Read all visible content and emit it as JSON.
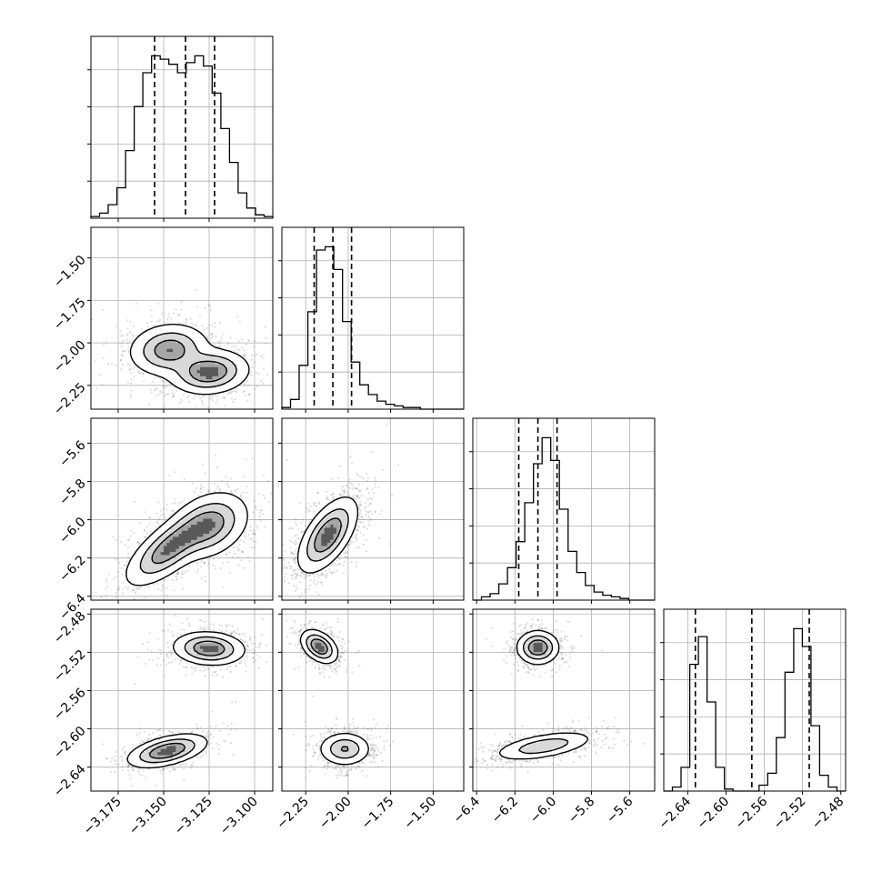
{
  "chart_data": {
    "type": "scatter",
    "title": "",
    "plot_kind": "corner",
    "grid": true,
    "quantiles": [
      0.16,
      0.5,
      0.84
    ],
    "params": [
      {
        "range": [
          -3.19,
          -3.09
        ],
        "ticks": [
          -3.175,
          -3.15,
          -3.125,
          -3.1
        ],
        "tick_labels": [
          "−3.175",
          "−3.150",
          "−3.125",
          "−3.100"
        ],
        "quantile_values": [
          -3.155,
          -3.138,
          -3.122
        ],
        "modes": [
          {
            "center": -3.147,
            "sigma": 0.009,
            "weight": 0.5
          },
          {
            "center": -3.125,
            "sigma": 0.009,
            "weight": 0.5
          }
        ]
      },
      {
        "range": [
          -2.39,
          -1.32
        ],
        "ticks": [
          -2.25,
          -2.0,
          -1.75,
          -1.5
        ],
        "tick_labels": [
          "−2.25",
          "−2.00",
          "−1.75",
          "−1.50"
        ],
        "quantile_values": [
          -2.2,
          -2.09,
          -1.98
        ],
        "modes": [
          {
            "center": -2.1,
            "sigma": 0.07,
            "weight": 1.0
          }
        ]
      },
      {
        "range": [
          -6.42,
          -5.47
        ],
        "ticks": [
          -6.4,
          -6.2,
          -6.0,
          -5.8,
          -5.6
        ],
        "tick_labels": [
          "−6.4",
          "−6.2",
          "−6.0",
          "−5.8",
          "−5.6"
        ],
        "quantile_values": [
          -6.18,
          -6.08,
          -5.98
        ],
        "modes": [
          {
            "center": -6.08,
            "sigma": 0.07,
            "weight": 1.0
          }
        ]
      },
      {
        "range": [
          -2.665,
          -2.475
        ],
        "ticks": [
          -2.64,
          -2.6,
          -2.56,
          -2.52,
          -2.48
        ],
        "tick_labels": [
          "−2.64",
          "−2.60",
          "−2.56",
          "−2.52",
          "−2.48"
        ],
        "quantile_values": [
          -2.632,
          -2.573,
          -2.513
        ],
        "modes": [
          {
            "center": -2.623,
            "sigma": 0.007,
            "weight": 0.5
          },
          {
            "center": -2.516,
            "sigma": 0.007,
            "weight": 0.5
          }
        ]
      }
    ],
    "histograms": [
      [
        0.01,
        0.03,
        0.08,
        0.18,
        0.4,
        0.66,
        0.86,
        0.96,
        0.94,
        0.91,
        0.86,
        0.92,
        0.96,
        0.9,
        0.74,
        0.53,
        0.33,
        0.15,
        0.06,
        0.02,
        0.01
      ],
      [
        0.01,
        0.06,
        0.27,
        0.6,
        0.98,
        1.0,
        0.86,
        0.54,
        0.29,
        0.15,
        0.09,
        0.05,
        0.03,
        0.02,
        0.01,
        0.01,
        0.0,
        0.0,
        0.0,
        0.0,
        0.0
      ],
      [
        0.0,
        0.02,
        0.04,
        0.1,
        0.2,
        0.36,
        0.6,
        0.84,
        1.0,
        0.86,
        0.56,
        0.3,
        0.17,
        0.09,
        0.05,
        0.03,
        0.02,
        0.01,
        0.0,
        0.0,
        0.0
      ],
      [
        0.0,
        0.02,
        0.12,
        0.64,
        0.78,
        0.45,
        0.12,
        0.01,
        0.0,
        0.0,
        0.0,
        0.03,
        0.09,
        0.27,
        0.6,
        0.82,
        0.73,
        0.33,
        0.08,
        0.02,
        0.0
      ]
    ]
  }
}
